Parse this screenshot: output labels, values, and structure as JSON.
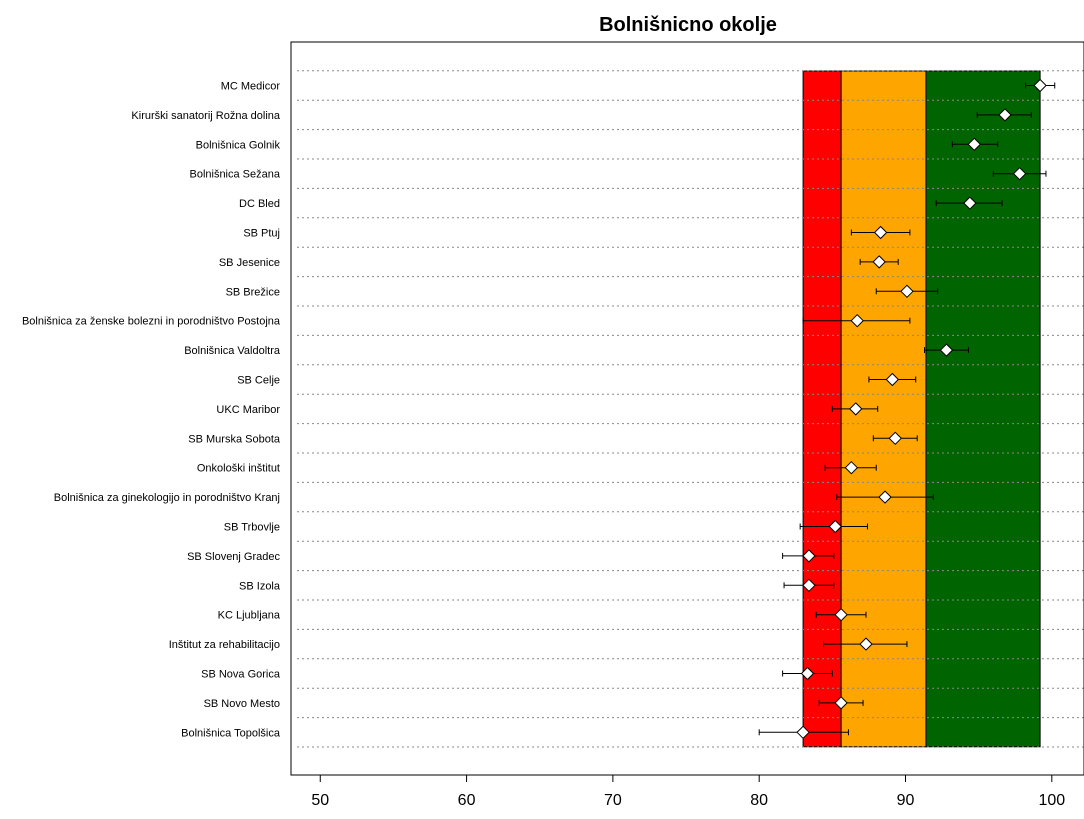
{
  "chart_data": {
    "type": "scatter",
    "title": "Bolnišnicno okolje",
    "xlabel": "",
    "ylabel": "",
    "xlim": [
      48,
      102.2
    ],
    "xticks": [
      50,
      60,
      70,
      80,
      90,
      100
    ],
    "grid": "horizontal dotted",
    "bands": [
      {
        "from": 83.0,
        "to": 85.6,
        "color": "#ff0000"
      },
      {
        "from": 85.6,
        "to": 91.4,
        "color": "#ffa500"
      },
      {
        "from": 91.4,
        "to": 99.2,
        "color": "#006400"
      }
    ],
    "points": [
      {
        "label": "MC Medicor",
        "value": 99.2,
        "lo": 98.2,
        "hi": 100.2
      },
      {
        "label": "Kirurški sanatorij Rožna dolina",
        "value": 96.8,
        "lo": 94.9,
        "hi": 98.6
      },
      {
        "label": "Bolnišnica Golnik",
        "value": 94.7,
        "lo": 93.2,
        "hi": 96.3
      },
      {
        "label": "Bolnišnica Sežana",
        "value": 97.8,
        "lo": 96.0,
        "hi": 99.6
      },
      {
        "label": "DC Bled",
        "value": 94.4,
        "lo": 92.1,
        "hi": 96.6
      },
      {
        "label": "SB Ptuj",
        "value": 88.3,
        "lo": 86.3,
        "hi": 90.3
      },
      {
        "label": "SB Jesenice",
        "value": 88.2,
        "lo": 86.9,
        "hi": 89.5
      },
      {
        "label": "SB Brežice",
        "value": 90.1,
        "lo": 88.0,
        "hi": 92.2
      },
      {
        "label": "Bolnišnica za ženske bolezni in porodništvo Postojna",
        "value": 86.7,
        "lo": 83.0,
        "hi": 90.3
      },
      {
        "label": "Bolnišnica Valdoltra",
        "value": 92.8,
        "lo": 91.3,
        "hi": 94.3
      },
      {
        "label": "SB Celje",
        "value": 89.1,
        "lo": 87.5,
        "hi": 90.7
      },
      {
        "label": "UKC Maribor",
        "value": 86.6,
        "lo": 85.0,
        "hi": 88.1
      },
      {
        "label": "SB Murska Sobota",
        "value": 89.3,
        "lo": 87.8,
        "hi": 90.8
      },
      {
        "label": "Onkološki inštitut",
        "value": 86.3,
        "lo": 84.5,
        "hi": 88.0
      },
      {
        "label": "Bolnišnica za ginekologijo in porodništvo Kranj",
        "value": 88.6,
        "lo": 85.3,
        "hi": 91.9
      },
      {
        "label": "SB Trbovlje",
        "value": 85.2,
        "lo": 82.8,
        "hi": 87.4
      },
      {
        "label": "SB Slovenj Gradec",
        "value": 83.4,
        "lo": 81.6,
        "hi": 85.1
      },
      {
        "label": "SB Izola",
        "value": 83.4,
        "lo": 81.7,
        "hi": 85.1
      },
      {
        "label": "KC Ljubljana",
        "value": 85.6,
        "lo": 83.9,
        "hi": 87.3
      },
      {
        "label": "Inštitut za rehabilitacijo",
        "value": 87.3,
        "lo": 84.4,
        "hi": 90.1
      },
      {
        "label": "SB Nova Gorica",
        "value": 83.3,
        "lo": 81.6,
        "hi": 85.0
      },
      {
        "label": "SB Novo Mesto",
        "value": 85.6,
        "lo": 84.1,
        "hi": 87.1
      },
      {
        "label": "Bolnišnica Topolšica",
        "value": 83.0,
        "lo": 80.0,
        "hi": 86.1
      }
    ]
  }
}
